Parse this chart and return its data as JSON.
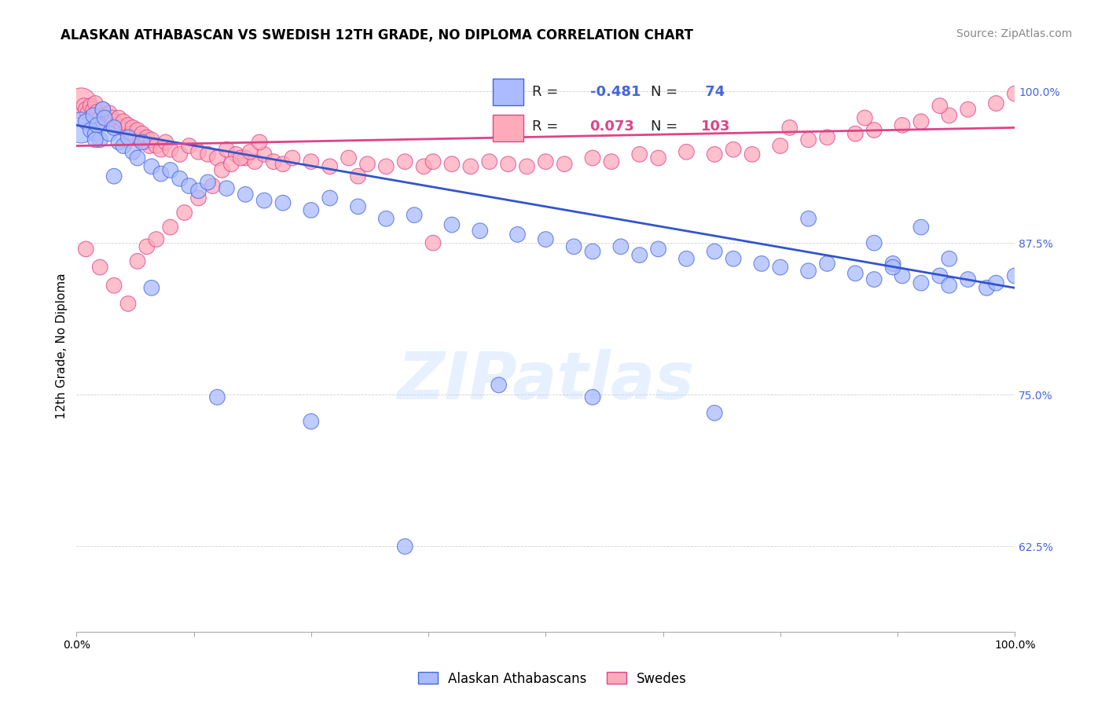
{
  "title": "ALASKAN ATHABASCAN VS SWEDISH 12TH GRADE, NO DIPLOMA CORRELATION CHART",
  "source": "Source: ZipAtlas.com",
  "ylabel": "12th Grade, No Diploma",
  "watermark": "ZIPatlas",
  "legend_blue_r": "-0.481",
  "legend_blue_n": "74",
  "legend_pink_r": "0.073",
  "legend_pink_n": "103",
  "blue_fill": "#aabbff",
  "blue_edge": "#4466dd",
  "pink_fill": "#ffaabb",
  "pink_edge": "#dd4488",
  "blue_line_color": "#3355cc",
  "pink_line_color": "#dd4488",
  "xmin": 0.0,
  "xmax": 1.0,
  "ymin": 0.555,
  "ymax": 1.025,
  "yticks": [
    0.625,
    0.75,
    0.875,
    1.0
  ],
  "ytick_labels": [
    "62.5%",
    "75.0%",
    "87.5%",
    "100.0%"
  ],
  "xticks": [
    0.0,
    0.125,
    0.25,
    0.375,
    0.5,
    0.625,
    0.75,
    0.875,
    1.0
  ],
  "xtick_labels": [
    "0.0%",
    "",
    "",
    "",
    "",
    "",
    "",
    "",
    "100.0%"
  ],
  "blue_line_y0": 0.972,
  "blue_line_y1": 0.838,
  "pink_line_y0": 0.955,
  "pink_line_y1": 0.97,
  "title_fontsize": 12,
  "axis_label_fontsize": 11,
  "tick_fontsize": 10,
  "source_fontsize": 10,
  "legend_fontsize": 13,
  "blue_x": [
    0.005,
    0.01,
    0.015,
    0.018,
    0.02,
    0.022,
    0.025,
    0.028,
    0.03,
    0.035,
    0.04,
    0.045,
    0.05,
    0.055,
    0.06,
    0.065,
    0.07,
    0.08,
    0.09,
    0.1,
    0.11,
    0.12,
    0.13,
    0.14,
    0.16,
    0.18,
    0.2,
    0.22,
    0.25,
    0.27,
    0.3,
    0.33,
    0.36,
    0.4,
    0.43,
    0.47,
    0.5,
    0.53,
    0.55,
    0.58,
    0.6,
    0.62,
    0.65,
    0.68,
    0.7,
    0.73,
    0.75,
    0.78,
    0.8,
    0.83,
    0.85,
    0.87,
    0.88,
    0.9,
    0.92,
    0.93,
    0.95,
    0.97,
    0.98,
    1.0,
    0.85,
    0.9,
    0.87,
    0.93,
    0.78,
    0.68,
    0.55,
    0.45,
    0.35,
    0.25,
    0.15,
    0.08,
    0.04,
    0.02
  ],
  "blue_y": [
    0.97,
    0.975,
    0.968,
    0.98,
    0.965,
    0.972,
    0.96,
    0.985,
    0.978,
    0.965,
    0.97,
    0.958,
    0.955,
    0.962,
    0.95,
    0.945,
    0.958,
    0.938,
    0.932,
    0.935,
    0.928,
    0.922,
    0.918,
    0.925,
    0.92,
    0.915,
    0.91,
    0.908,
    0.902,
    0.912,
    0.905,
    0.895,
    0.898,
    0.89,
    0.885,
    0.882,
    0.878,
    0.872,
    0.868,
    0.872,
    0.865,
    0.87,
    0.862,
    0.868,
    0.862,
    0.858,
    0.855,
    0.852,
    0.858,
    0.85,
    0.845,
    0.858,
    0.848,
    0.842,
    0.848,
    0.84,
    0.845,
    0.838,
    0.842,
    0.848,
    0.875,
    0.888,
    0.855,
    0.862,
    0.895,
    0.735,
    0.748,
    0.758,
    0.625,
    0.728,
    0.748,
    0.838,
    0.93,
    0.96
  ],
  "blue_sizes": [
    800,
    200,
    200,
    200,
    200,
    200,
    200,
    200,
    200,
    200,
    200,
    200,
    200,
    200,
    200,
    200,
    200,
    200,
    200,
    200,
    200,
    200,
    200,
    200,
    200,
    200,
    200,
    200,
    200,
    200,
    200,
    200,
    200,
    200,
    200,
    200,
    200,
    200,
    200,
    200,
    200,
    200,
    200,
    200,
    200,
    200,
    200,
    200,
    200,
    200,
    200,
    200,
    200,
    200,
    200,
    200,
    200,
    200,
    200,
    200,
    200,
    200,
    200,
    200,
    200,
    200,
    200,
    200,
    200,
    200,
    200,
    200,
    200,
    200
  ],
  "pink_x": [
    0.005,
    0.008,
    0.01,
    0.012,
    0.015,
    0.018,
    0.02,
    0.022,
    0.025,
    0.028,
    0.03,
    0.033,
    0.035,
    0.038,
    0.04,
    0.043,
    0.045,
    0.048,
    0.05,
    0.053,
    0.055,
    0.058,
    0.06,
    0.063,
    0.065,
    0.068,
    0.07,
    0.073,
    0.075,
    0.078,
    0.08,
    0.085,
    0.09,
    0.095,
    0.1,
    0.11,
    0.12,
    0.13,
    0.14,
    0.15,
    0.16,
    0.17,
    0.18,
    0.19,
    0.2,
    0.21,
    0.22,
    0.23,
    0.25,
    0.27,
    0.29,
    0.31,
    0.33,
    0.35,
    0.37,
    0.38,
    0.4,
    0.42,
    0.44,
    0.46,
    0.48,
    0.5,
    0.52,
    0.55,
    0.57,
    0.6,
    0.62,
    0.65,
    0.68,
    0.7,
    0.72,
    0.75,
    0.78,
    0.8,
    0.83,
    0.85,
    0.88,
    0.9,
    0.93,
    0.95,
    0.98,
    1.0,
    0.76,
    0.84,
    0.92,
    0.01,
    0.025,
    0.04,
    0.055,
    0.065,
    0.075,
    0.085,
    0.1,
    0.115,
    0.13,
    0.145,
    0.155,
    0.165,
    0.175,
    0.185,
    0.195,
    0.3,
    0.38
  ],
  "pink_y": [
    0.99,
    0.988,
    0.985,
    0.982,
    0.988,
    0.985,
    0.99,
    0.983,
    0.978,
    0.985,
    0.98,
    0.975,
    0.982,
    0.978,
    0.975,
    0.972,
    0.978,
    0.97,
    0.975,
    0.968,
    0.972,
    0.965,
    0.97,
    0.962,
    0.968,
    0.96,
    0.965,
    0.958,
    0.962,
    0.955,
    0.96,
    0.955,
    0.952,
    0.958,
    0.952,
    0.948,
    0.955,
    0.95,
    0.948,
    0.945,
    0.952,
    0.948,
    0.945,
    0.942,
    0.948,
    0.942,
    0.94,
    0.945,
    0.942,
    0.938,
    0.945,
    0.94,
    0.938,
    0.942,
    0.938,
    0.942,
    0.94,
    0.938,
    0.942,
    0.94,
    0.938,
    0.942,
    0.94,
    0.945,
    0.942,
    0.948,
    0.945,
    0.95,
    0.948,
    0.952,
    0.948,
    0.955,
    0.96,
    0.962,
    0.965,
    0.968,
    0.972,
    0.975,
    0.98,
    0.985,
    0.99,
    0.998,
    0.97,
    0.978,
    0.988,
    0.87,
    0.855,
    0.84,
    0.825,
    0.86,
    0.872,
    0.878,
    0.888,
    0.9,
    0.912,
    0.922,
    0.935,
    0.94,
    0.945,
    0.95,
    0.958,
    0.93,
    0.875
  ],
  "pink_sizes": [
    800,
    200,
    200,
    200,
    200,
    200,
    200,
    200,
    200,
    200,
    200,
    200,
    200,
    200,
    200,
    200,
    200,
    200,
    200,
    200,
    200,
    200,
    200,
    200,
    200,
    200,
    200,
    200,
    200,
    200,
    200,
    200,
    200,
    200,
    200,
    200,
    200,
    200,
    200,
    200,
    200,
    200,
    200,
    200,
    200,
    200,
    200,
    200,
    200,
    200,
    200,
    200,
    200,
    200,
    200,
    200,
    200,
    200,
    200,
    200,
    200,
    200,
    200,
    200,
    200,
    200,
    200,
    200,
    200,
    200,
    200,
    200,
    200,
    200,
    200,
    200,
    200,
    200,
    200,
    200,
    200,
    200,
    200,
    200,
    200,
    200,
    200,
    200,
    200,
    200,
    200,
    200,
    200,
    200,
    200,
    200,
    200,
    200,
    200,
    200,
    200,
    200,
    200
  ]
}
